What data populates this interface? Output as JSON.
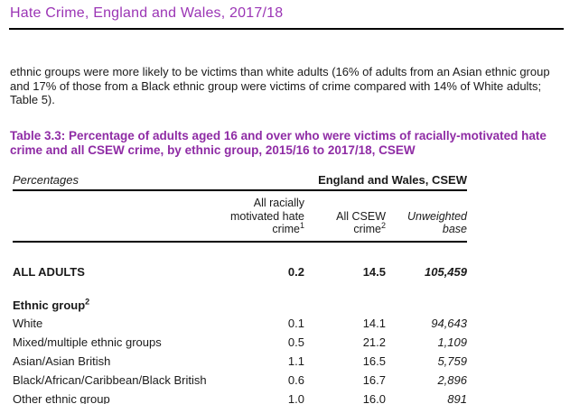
{
  "page": {
    "title": "Hate Crime, England and Wales, 2017/18",
    "intro_paragraph": "ethnic groups were more likely to be victims than white adults (16% of adults from an Asian ethnic group and 17% of those from a Black ethnic group were victims of crime compared with 14% of White adults; Table 5).",
    "title_color": "#9b35b5",
    "caption_color": "#8f2ca5"
  },
  "table": {
    "caption": "Table 3.3: Percentage of adults aged 16 and over who were victims of racially-motivated hate crime and all CSEW crime, by ethnic group, 2015/16 to 2017/18, CSEW",
    "units_label": "Percentages",
    "region_label": "England and Wales, CSEW",
    "columns": [
      {
        "lines": [
          "All racially",
          "motivated hate",
          "crime"
        ],
        "superscript": "1"
      },
      {
        "lines": [
          "All CSEW",
          "crime"
        ],
        "superscript": "2"
      },
      {
        "lines": [
          "Unweighted",
          "base"
        ],
        "superscript": ""
      }
    ],
    "summary_row": {
      "label": "ALL ADULTS",
      "values": [
        "0.2",
        "14.5",
        "105,459"
      ]
    },
    "group_heading": {
      "label": "Ethnic group",
      "superscript": "2"
    },
    "rows": [
      {
        "label": "White",
        "values": [
          "0.1",
          "14.1",
          "94,643"
        ]
      },
      {
        "label": "Mixed/multiple ethnic groups",
        "values": [
          "0.5",
          "21.2",
          "1,109"
        ]
      },
      {
        "label": "Asian/Asian British",
        "values": [
          "1.1",
          "16.5",
          "5,759"
        ]
      },
      {
        "label": "Black/African/Caribbean/Black British",
        "values": [
          "0.6",
          "16.7",
          "2,896"
        ]
      },
      {
        "label": "Other ethnic group",
        "values": [
          "1.0",
          "16.0",
          "891"
        ]
      }
    ]
  }
}
